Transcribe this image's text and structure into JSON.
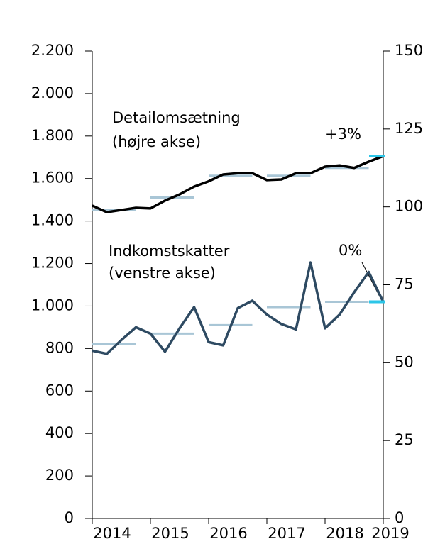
{
  "chart_data": {
    "type": "line",
    "x": [
      2014,
      2014.25,
      2014.5,
      2014.75,
      2015,
      2015.25,
      2015.5,
      2015.75,
      2016,
      2016.25,
      2016.5,
      2016.75,
      2017,
      2017.25,
      2017.5,
      2017.75,
      2018,
      2018.25,
      2018.5,
      2018.75,
      2019
    ],
    "xlim": [
      2014,
      2019
    ],
    "xticks": [
      2014,
      2015,
      2016,
      2017,
      2018,
      2019
    ],
    "ylim": [
      0,
      2200
    ],
    "yticks": [
      0,
      200,
      400,
      600,
      800,
      {
        "value": 1000,
        "label": "1.000"
      },
      {
        "value": 1200,
        "label": "1.200"
      },
      {
        "value": 1400,
        "label": "1.400"
      },
      {
        "value": 1600,
        "label": "1.600"
      },
      {
        "value": 1800,
        "label": "1.800"
      },
      {
        "value": 2000,
        "label": "2.000"
      },
      {
        "value": 2200,
        "label": "2.200"
      }
    ],
    "y2lim": [
      0,
      150
    ],
    "y2ticks": [
      0,
      25,
      50,
      75,
      100,
      125,
      150
    ],
    "average_color": "#a9c6d6",
    "end_color": "#2cc6e8",
    "series": [
      {
        "label": [
          "Detailomsætning",
          "(højre akse)"
        ],
        "axis": "y2",
        "color": "#000000",
        "values": [
          100.4,
          98.3,
          99,
          99.7,
          99.5,
          102,
          104,
          106.5,
          108.2,
          110.4,
          110.8,
          110.8,
          108.6,
          108.8,
          110.8,
          110.8,
          112.9,
          113.3,
          112.5,
          114.5,
          116.3
        ],
        "average_years": [
          2014,
          2015,
          2016,
          2017,
          2018
        ],
        "averages": [
          99,
          103,
          110,
          110,
          112.5
        ],
        "change": "+3%"
      },
      {
        "label": [
          "Indkomstskatter",
          "(venstre akse)"
        ],
        "axis": "y",
        "color": "#2e4a62",
        "values": [
          790,
          775,
          840,
          900,
          870,
          785,
          895,
          995,
          830,
          815,
          990,
          1025,
          960,
          915,
          890,
          1205,
          895,
          960,
          1065,
          1160,
          1020
        ],
        "average_years": [
          2014,
          2015,
          2016,
          2017,
          2018
        ],
        "averages": [
          823,
          870,
          910,
          995,
          1020
        ],
        "change": "0%"
      }
    ]
  }
}
